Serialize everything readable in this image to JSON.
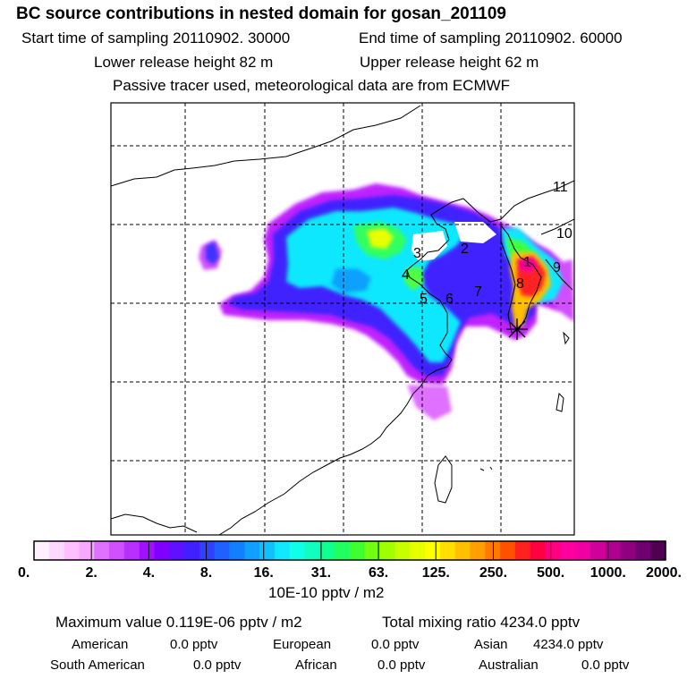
{
  "header": {
    "title": "BC  source contributions in nested domain for gosan_201109",
    "start_time": "Start time of sampling 20110902. 30000",
    "end_time": "End time of sampling 20110902. 60000",
    "lower_release": "Lower release height   82 m",
    "upper_release": "Upper release height   62 m",
    "tracer_note": "Passive tracer used, meteorological data are from ECMWF"
  },
  "map": {
    "region_labels": [
      "1",
      "2",
      "3",
      "4",
      "5",
      "6",
      "7",
      "8",
      "9",
      "10",
      "11"
    ],
    "receptor_marker": "asterisk",
    "gridlines": "dashed",
    "coastline_color": "#000000"
  },
  "colorbar": {
    "tick_labels": [
      "0.",
      "2.",
      "4.",
      "8.",
      "16.",
      "31.",
      "63.",
      "125.",
      "250.",
      "500.",
      "1000.",
      "2000."
    ],
    "unit": "10E-10 pptv / m2",
    "colors": [
      "#fff0ff",
      "#ffd8ff",
      "#ffc0ff",
      "#f8a8ff",
      "#e070ff",
      "#d050ff",
      "#b830ff",
      "#a010ff",
      "#8000ff",
      "#6010ff",
      "#4020ff",
      "#3040ff",
      "#2060ff",
      "#1080ff",
      "#10a0ff",
      "#10c0ff",
      "#10e8ff",
      "#10ffe8",
      "#10ffc0",
      "#10ff90",
      "#20ff60",
      "#40ff30",
      "#70ff10",
      "#a0ff00",
      "#c8ff00",
      "#e8ff00",
      "#ffff00",
      "#ffe000",
      "#ffc000",
      "#ffa000",
      "#ff7800",
      "#ff5000",
      "#ff2020",
      "#ff0040",
      "#ff0080",
      "#ff00a0",
      "#f000a0",
      "#d0009a",
      "#b00090",
      "#900080",
      "#700070",
      "#500050"
    ]
  },
  "summary": {
    "max_value": "Maximum value  0.119E-06 pptv / m2",
    "total_mixing": "Total mixing ratio     4234.0 pptv",
    "rows": [
      [
        {
          "name": "American",
          "value": "0.0 pptv"
        },
        {
          "name": "European",
          "value": "0.0 pptv"
        },
        {
          "name": "Asian",
          "value": "4234.0 pptv"
        }
      ],
      [
        {
          "name": "South American",
          "value": "0.0 pptv"
        },
        {
          "name": "African",
          "value": "0.0 pptv"
        },
        {
          "name": "Australian",
          "value": "0.0 pptv"
        }
      ]
    ]
  }
}
